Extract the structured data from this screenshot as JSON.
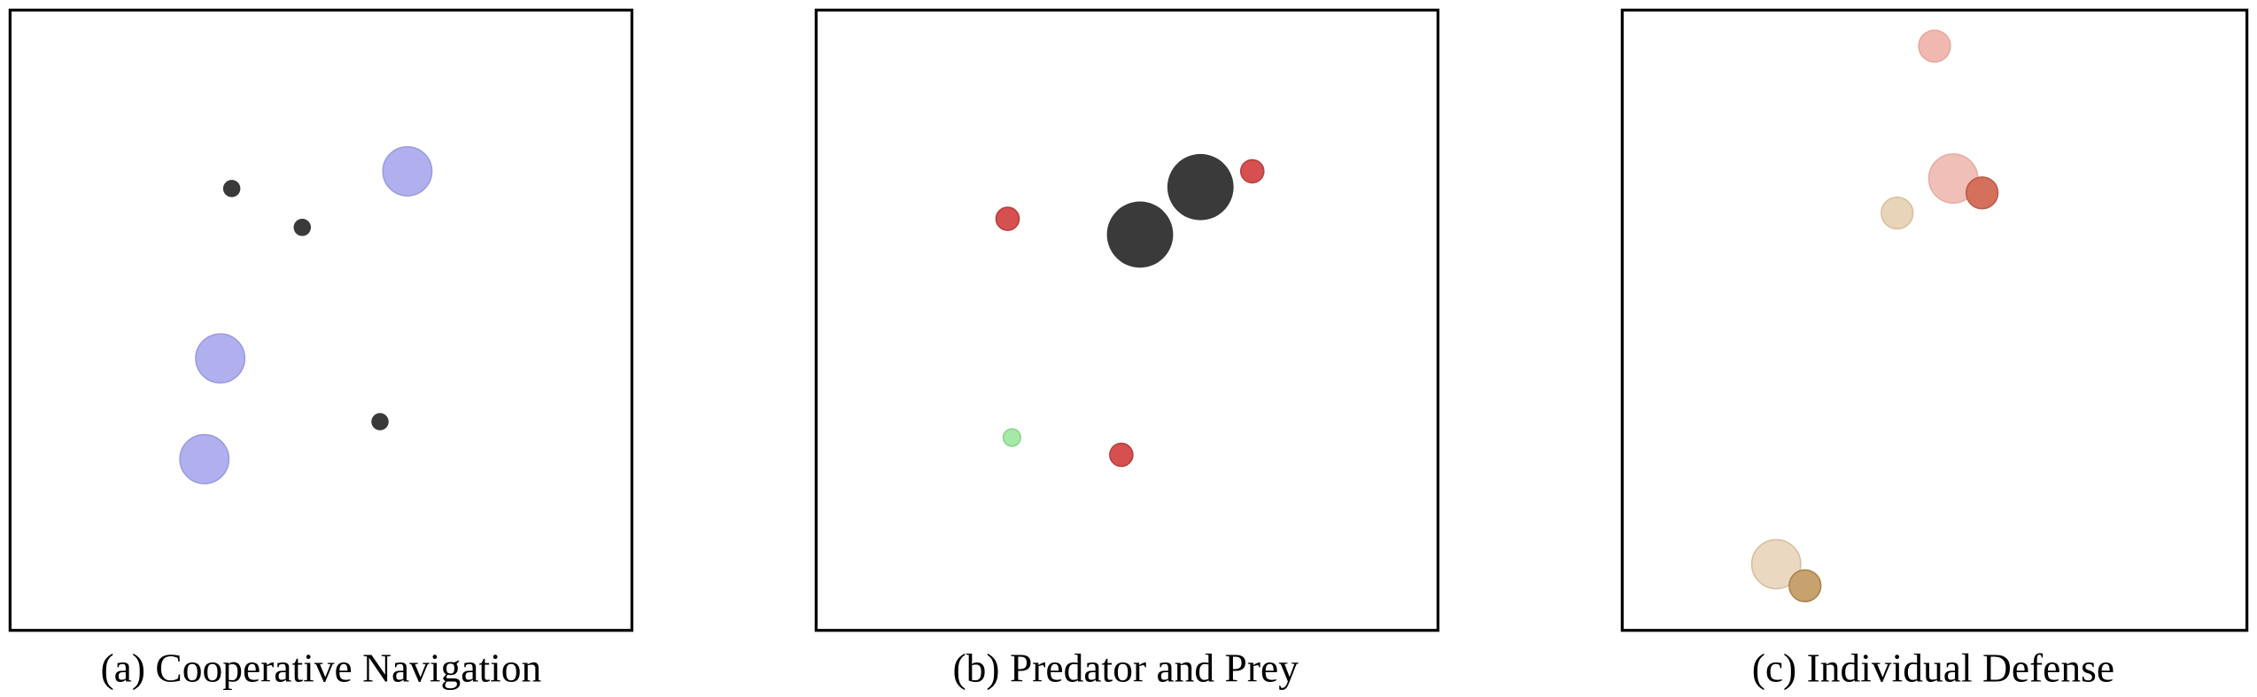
{
  "panels": [
    {
      "caption": "(a) Cooperative Navigation"
    },
    {
      "caption": "(b) Predator and Prey"
    },
    {
      "caption": "(c) Individual Defense"
    }
  ]
}
